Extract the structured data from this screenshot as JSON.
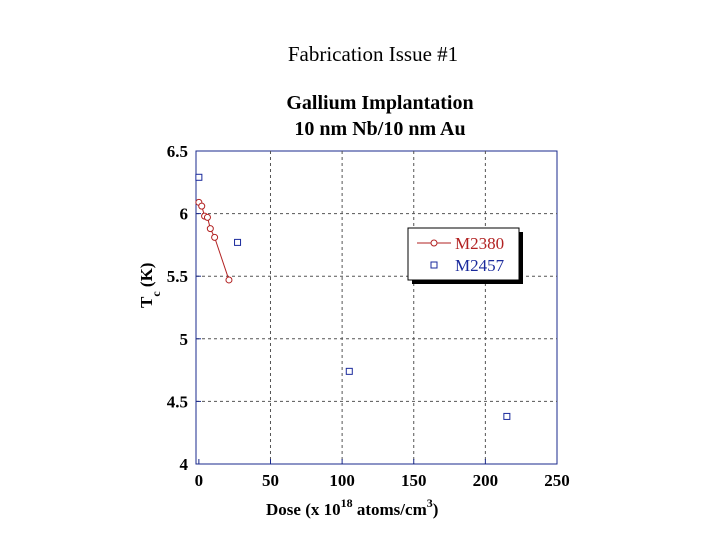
{
  "slide": {
    "title": "Fabrication Issue #1"
  },
  "chart_data": {
    "type": "scatter",
    "title": "Gallium Implantation",
    "subtitle": "10 nm Nb/10 nm Au",
    "xlabel": "Dose (x 10^18 atoms/cm^3)",
    "ylabel": "T_c (K)",
    "xlim": [
      -2,
      250
    ],
    "ylim": [
      4,
      6.5
    ],
    "xticks": [
      0,
      50,
      100,
      150,
      200,
      250
    ],
    "yticks": [
      4,
      4.5,
      5,
      5.5,
      6,
      6.5
    ],
    "grid": true,
    "legend_position": "right",
    "series": [
      {
        "name": "M2380",
        "color": "#b22222",
        "marker": "circle",
        "line": true,
        "x": [
          0,
          2,
          4,
          6,
          8,
          11,
          21
        ],
        "y": [
          6.09,
          6.06,
          5.98,
          5.97,
          5.88,
          5.81,
          5.47
        ]
      },
      {
        "name": "M2457",
        "color": "#1a2a9c",
        "marker": "square",
        "line": false,
        "x": [
          0,
          27,
          105,
          215
        ],
        "y": [
          6.29,
          5.77,
          4.74,
          4.38
        ]
      }
    ]
  }
}
